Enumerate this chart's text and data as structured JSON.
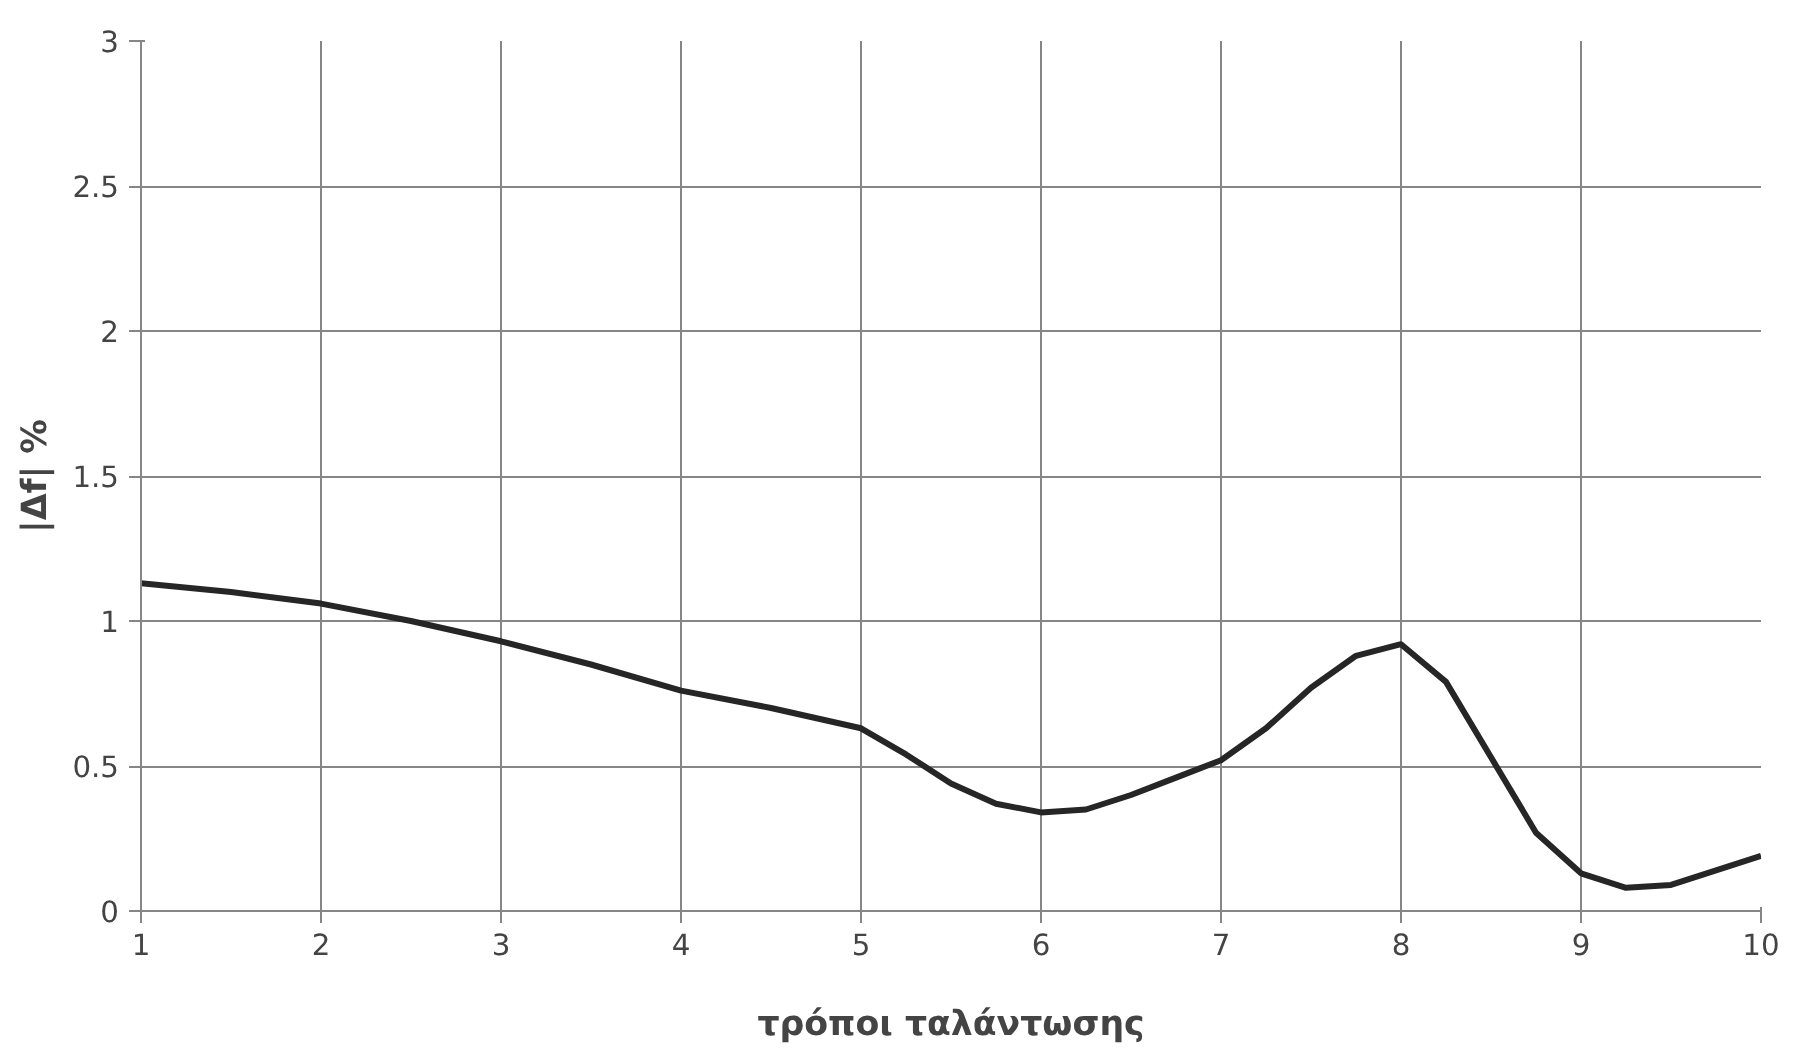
{
  "chart_data": {
    "type": "line",
    "xlabel": "τρόποι ταλάντωσης",
    "ylabel": "|Δf| %",
    "x": [
      1,
      1.5,
      2,
      2.5,
      3,
      3.5,
      4,
      4.5,
      5,
      5.25,
      5.5,
      5.75,
      6,
      6.25,
      6.5,
      6.75,
      7,
      7.25,
      7.5,
      7.75,
      8,
      8.25,
      8.5,
      8.75,
      9,
      9.25,
      9.5,
      9.75,
      10
    ],
    "series": [
      {
        "color": "#262626",
        "values": [
          1.13,
          1.1,
          1.06,
          1.0,
          0.93,
          0.85,
          0.76,
          0.7,
          0.63,
          0.54,
          0.44,
          0.37,
          0.34,
          0.35,
          0.4,
          0.46,
          0.52,
          0.63,
          0.77,
          0.88,
          0.92,
          0.79,
          0.53,
          0.27,
          0.13,
          0.08,
          0.09,
          0.14,
          0.19
        ]
      }
    ],
    "xlim": [
      1,
      10
    ],
    "xticks": [
      1,
      2,
      3,
      4,
      5,
      6,
      7,
      8,
      9,
      10
    ],
    "ylim": [
      0,
      3
    ],
    "yticks": [
      0,
      0.5,
      1,
      1.5,
      2,
      2.5,
      3
    ],
    "grid": true,
    "marker": "none",
    "line_style": "solid"
  }
}
